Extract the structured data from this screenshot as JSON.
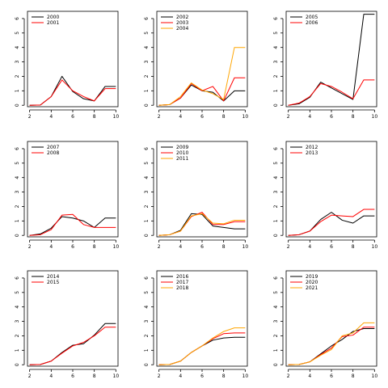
{
  "chart_data": [
    {
      "type": "line",
      "x": [
        2,
        3,
        4,
        5,
        6,
        7,
        8,
        9,
        10
      ],
      "xticks": [
        2,
        4,
        6,
        8,
        10
      ],
      "yticks": [
        0,
        1,
        2,
        3,
        4,
        5,
        6
      ],
      "xlim": [
        1.8,
        10.2
      ],
      "ylim": [
        -0.1,
        6.5
      ],
      "legend_position": "top-left",
      "series": [
        {
          "name": "2000",
          "color": "#000000",
          "values": [
            0.0,
            0.02,
            0.6,
            2.0,
            0.95,
            0.45,
            0.3,
            1.3,
            1.3
          ]
        },
        {
          "name": "2001",
          "color": "#ff0000",
          "values": [
            0.0,
            0.02,
            0.6,
            1.75,
            1.0,
            0.6,
            0.3,
            1.15,
            1.15
          ]
        }
      ]
    },
    {
      "type": "line",
      "x": [
        2,
        3,
        4,
        5,
        6,
        7,
        8,
        9,
        10
      ],
      "xticks": [
        2,
        4,
        6,
        8,
        10
      ],
      "yticks": [
        0,
        1,
        2,
        3,
        4,
        5,
        6
      ],
      "xlim": [
        1.8,
        10.2
      ],
      "ylim": [
        -0.1,
        6.5
      ],
      "legend_position": "top-left",
      "series": [
        {
          "name": "2002",
          "color": "#000000",
          "values": [
            0.0,
            0.05,
            0.5,
            1.4,
            1.0,
            0.9,
            0.3,
            1.0,
            1.0
          ]
        },
        {
          "name": "2003",
          "color": "#ff0000",
          "values": [
            0.0,
            0.05,
            0.5,
            1.5,
            1.0,
            1.3,
            0.3,
            1.9,
            1.9
          ]
        },
        {
          "name": "2004",
          "color": "#ffa500",
          "values": [
            0.0,
            0.05,
            0.6,
            1.55,
            1.05,
            0.8,
            0.4,
            4.0,
            4.0
          ]
        }
      ]
    },
    {
      "type": "line",
      "x": [
        2,
        3,
        4,
        5,
        6,
        7,
        8,
        9,
        10
      ],
      "xticks": [
        2,
        4,
        6,
        8,
        10
      ],
      "yticks": [
        0,
        1,
        2,
        3,
        4,
        5,
        6
      ],
      "xlim": [
        1.8,
        10.2
      ],
      "ylim": [
        -0.1,
        6.5
      ],
      "legend_position": "top-left",
      "series": [
        {
          "name": "2005",
          "color": "#000000",
          "values": [
            0.0,
            0.1,
            0.55,
            1.6,
            1.2,
            0.8,
            0.4,
            6.3,
            6.3
          ]
        },
        {
          "name": "2006",
          "color": "#ff0000",
          "values": [
            0.0,
            0.15,
            0.6,
            1.5,
            1.3,
            0.9,
            0.45,
            1.75,
            1.75
          ]
        }
      ]
    },
    {
      "type": "line",
      "x": [
        2,
        3,
        4,
        5,
        6,
        7,
        8,
        9,
        10
      ],
      "xticks": [
        2,
        4,
        6,
        8,
        10
      ],
      "yticks": [
        0,
        1,
        2,
        3,
        4,
        5,
        6
      ],
      "xlim": [
        1.8,
        10.2
      ],
      "ylim": [
        -0.1,
        6.5
      ],
      "legend_position": "top-left",
      "series": [
        {
          "name": "2007",
          "color": "#000000",
          "values": [
            0.0,
            0.1,
            0.5,
            1.3,
            1.2,
            1.0,
            0.55,
            1.2,
            1.2
          ]
        },
        {
          "name": "2008",
          "color": "#ff0000",
          "values": [
            0.0,
            0.05,
            0.4,
            1.4,
            1.45,
            0.75,
            0.55,
            0.55,
            0.55
          ]
        }
      ]
    },
    {
      "type": "line",
      "x": [
        2,
        3,
        4,
        5,
        6,
        7,
        8,
        9,
        10
      ],
      "xticks": [
        2,
        4,
        6,
        8,
        10
      ],
      "yticks": [
        0,
        1,
        2,
        3,
        4,
        5,
        6
      ],
      "xlim": [
        1.8,
        10.2
      ],
      "ylim": [
        -0.1,
        6.5
      ],
      "legend_position": "top-left",
      "series": [
        {
          "name": "2009",
          "color": "#000000",
          "values": [
            0.0,
            0.05,
            0.35,
            1.5,
            1.45,
            0.65,
            0.55,
            0.45,
            0.45
          ]
        },
        {
          "name": "2010",
          "color": "#ff0000",
          "values": [
            0.0,
            0.05,
            0.3,
            1.3,
            1.6,
            0.75,
            0.75,
            0.95,
            0.95
          ]
        },
        {
          "name": "2011",
          "color": "#ffa500",
          "values": [
            0.0,
            0.05,
            0.3,
            1.35,
            1.5,
            0.85,
            0.8,
            1.05,
            1.05
          ]
        }
      ]
    },
    {
      "type": "line",
      "x": [
        2,
        3,
        4,
        5,
        6,
        7,
        8,
        9,
        10
      ],
      "xticks": [
        2,
        4,
        6,
        8,
        10
      ],
      "yticks": [
        0,
        1,
        2,
        3,
        4,
        5,
        6
      ],
      "xlim": [
        1.8,
        10.2
      ],
      "ylim": [
        -0.1,
        6.5
      ],
      "legend_position": "top-left",
      "series": [
        {
          "name": "2012",
          "color": "#000000",
          "values": [
            0.0,
            0.05,
            0.3,
            1.1,
            1.6,
            1.05,
            0.85,
            1.35,
            1.35
          ]
        },
        {
          "name": "2013",
          "color": "#ff0000",
          "values": [
            0.0,
            0.05,
            0.3,
            0.95,
            1.4,
            1.35,
            1.3,
            1.8,
            1.8
          ]
        }
      ]
    },
    {
      "type": "line",
      "x": [
        2,
        3,
        4,
        5,
        6,
        7,
        8,
        9,
        10
      ],
      "xticks": [
        2,
        4,
        6,
        8,
        10
      ],
      "yticks": [
        0,
        1,
        2,
        3,
        4,
        5,
        6
      ],
      "xlim": [
        1.8,
        10.2
      ],
      "ylim": [
        -0.1,
        6.5
      ],
      "legend_position": "top-left",
      "series": [
        {
          "name": "2014",
          "color": "#000000",
          "values": [
            0.0,
            0.02,
            0.25,
            0.85,
            1.35,
            1.45,
            2.05,
            2.85,
            2.85
          ]
        },
        {
          "name": "2015",
          "color": "#ff0000",
          "values": [
            0.0,
            0.02,
            0.25,
            0.8,
            1.3,
            1.55,
            2.0,
            2.6,
            2.6
          ]
        }
      ]
    },
    {
      "type": "line",
      "x": [
        2,
        3,
        4,
        5,
        6,
        7,
        8,
        9,
        10
      ],
      "xticks": [
        2,
        4,
        6,
        8,
        10
      ],
      "yticks": [
        0,
        1,
        2,
        3,
        4,
        5,
        6
      ],
      "xlim": [
        1.8,
        10.2
      ],
      "ylim": [
        -0.1,
        6.5
      ],
      "legend_position": "top-left",
      "series": [
        {
          "name": "2016",
          "color": "#000000",
          "values": [
            0.0,
            0.02,
            0.25,
            0.85,
            1.3,
            1.7,
            1.85,
            1.9,
            1.9
          ]
        },
        {
          "name": "2017",
          "color": "#ff0000",
          "values": [
            0.0,
            0.02,
            0.25,
            0.85,
            1.3,
            1.8,
            2.15,
            2.2,
            2.2
          ]
        },
        {
          "name": "2018",
          "color": "#ffa500",
          "values": [
            0.0,
            0.02,
            0.25,
            0.85,
            1.3,
            1.85,
            2.3,
            2.55,
            2.55
          ]
        }
      ]
    },
    {
      "type": "line",
      "x": [
        2,
        3,
        4,
        5,
        6,
        7,
        8,
        9,
        10
      ],
      "xticks": [
        2,
        4,
        6,
        8,
        10
      ],
      "yticks": [
        0,
        1,
        2,
        3,
        4,
        5,
        6
      ],
      "xlim": [
        1.8,
        10.2
      ],
      "ylim": [
        -0.1,
        6.5
      ],
      "legend_position": "top-left",
      "series": [
        {
          "name": "2019",
          "color": "#000000",
          "values": [
            0.0,
            0.02,
            0.2,
            0.75,
            1.3,
            1.75,
            2.3,
            2.5,
            2.5
          ]
        },
        {
          "name": "2020",
          "color": "#ff0000",
          "values": [
            0.0,
            0.02,
            0.2,
            0.7,
            1.15,
            1.95,
            2.05,
            2.6,
            2.6
          ]
        },
        {
          "name": "2021",
          "color": "#ffa500",
          "values": [
            0.0,
            0.02,
            0.2,
            0.65,
            1.05,
            2.0,
            2.2,
            2.9,
            2.9
          ]
        }
      ]
    }
  ]
}
